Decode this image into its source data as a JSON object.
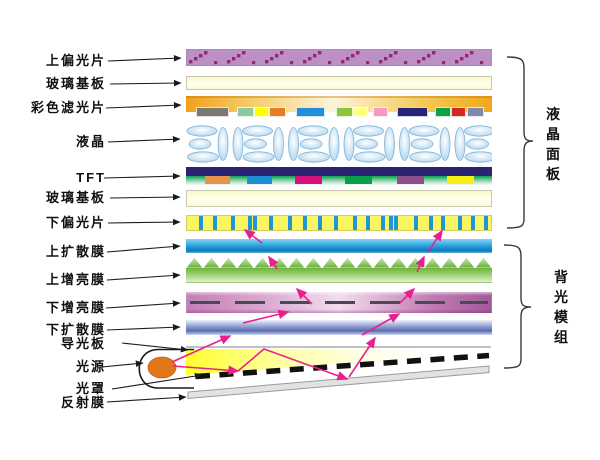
{
  "labels": {
    "layers": [
      {
        "id": "upper-polarizer",
        "text": "上偏光片"
      },
      {
        "id": "glass-substrate-top",
        "text": "玻璃基板"
      },
      {
        "id": "color-filter",
        "text": "彩色滤光片"
      },
      {
        "id": "liquid-crystal",
        "text": "液晶"
      },
      {
        "id": "tft",
        "text": "TFT"
      },
      {
        "id": "glass-substrate-bottom",
        "text": "玻璃基板"
      },
      {
        "id": "lower-polarizer",
        "text": "下偏光片"
      },
      {
        "id": "upper-diffuser",
        "text": "上扩散膜"
      },
      {
        "id": "upper-brightness-film",
        "text": "上增亮膜"
      },
      {
        "id": "lower-brightness-film",
        "text": "下增亮膜"
      },
      {
        "id": "lower-diffuser",
        "text": "下扩散膜"
      },
      {
        "id": "light-guide-plate",
        "text": "导光板"
      },
      {
        "id": "light-source",
        "text": "光源"
      },
      {
        "id": "lamp-cover",
        "text": "光罩"
      },
      {
        "id": "reflector",
        "text": "反射膜"
      }
    ]
  },
  "groups": {
    "lcd_panel": "液晶面板",
    "backlight_module": "背光模组"
  },
  "palette": {
    "upper_polarizer_base": "#bd90c5",
    "upper_polarizer_dot": "#942a6e",
    "glass_yellow": "#fdf8c4",
    "color_filter_orange": "#f0a21a",
    "lc_ellipse_blue": "#a9d2ec",
    "tft_navy": "#2a2473",
    "tft_green": "#0aa14f",
    "lower_polarizer_bg": "#fbf463",
    "lower_polarizer_stripe": "#2196d0",
    "upper_diffuser_blue": "#2ba7e1",
    "upper_bef_green": "#79b943",
    "lower_bef_purple": "#c47eb6",
    "lower_diffuser_blue": "#7484c4",
    "light_guide_yellow": "#ffff2e",
    "lamp_orange": "#e2761b",
    "ray_pink": "#ea1f8f",
    "reflector_gray": "#e2e2e2"
  },
  "color_filter_chips": [
    "#7a7a6e",
    "#8cc8a0",
    "#ffff00",
    "#e87d28",
    "#2090d8",
    "#8cc63f",
    "#ffff7a",
    "#f49ac1",
    "#28247c",
    "#0fa04c",
    "#d4291e",
    "#8088b0"
  ],
  "tft_chips": [
    "#e8924a",
    "#1e8fd5",
    "#d4117e",
    "#0a9e4a",
    "#8e4e8e",
    "#f7ef13"
  ]
}
